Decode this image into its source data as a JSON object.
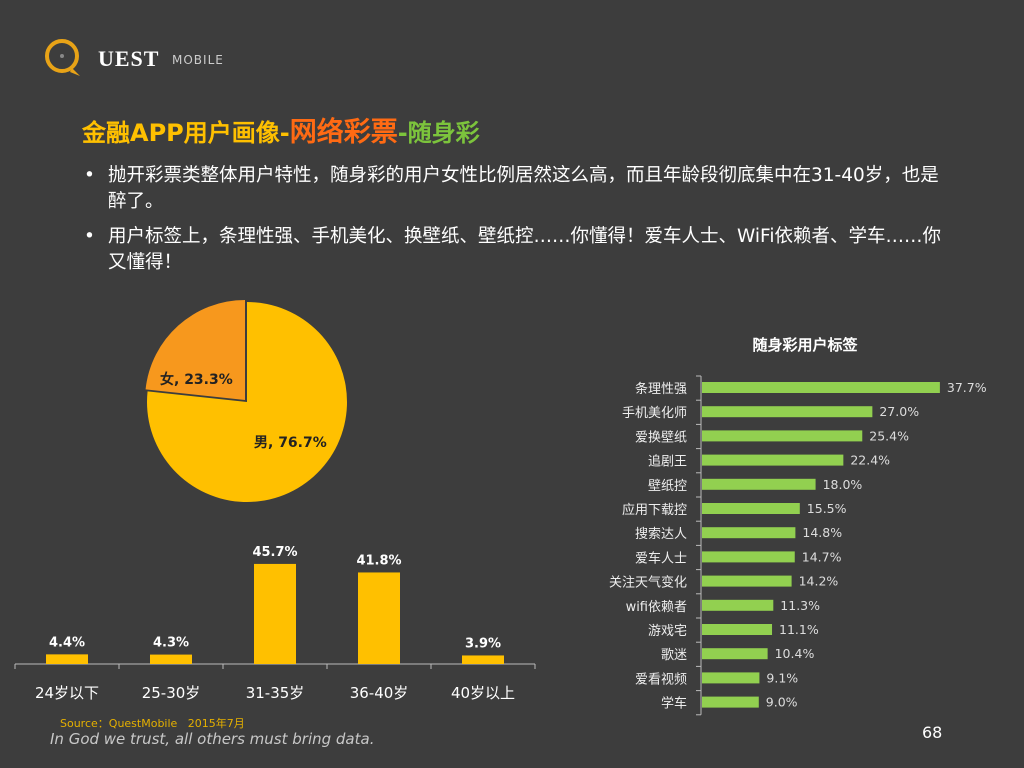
{
  "logo": {
    "brand": "UEST",
    "sub": "MOBILE"
  },
  "title": {
    "part1": "金融APP用户画像-",
    "part2": "网络彩票",
    "part3": "-随身彩"
  },
  "bullets": [
    "抛开彩票类整体用户特性，随身彩的用户女性比例居然这么高，而且年龄段彻底集中在31-40岁，也是醉了。",
    "用户标签上，条理性强、手机美化、换壁纸、壁纸控……你懂得！爱车人士、WiFi依赖者、学车……你又懂得！"
  ],
  "footer": {
    "source": "Source：QuestMobile   2015年7月",
    "tagline": "In God we trust, all others must bring data.",
    "page": "68"
  },
  "chart_data": [
    {
      "type": "pie",
      "categories": [
        "男",
        "女"
      ],
      "values": [
        76.7,
        23.3
      ],
      "labels": [
        "男, 76.7%",
        "女, 23.3%"
      ],
      "colors": [
        "#ffc000",
        "#f7981d"
      ]
    },
    {
      "type": "bar",
      "categories": [
        "24岁以下",
        "25-30岁",
        "31-35岁",
        "36-40岁",
        "40岁以上"
      ],
      "values": [
        4.4,
        4.3,
        45.7,
        41.8,
        3.9
      ],
      "data_labels": [
        "4.4%",
        "4.3%",
        "45.7%",
        "41.8%",
        "3.9%"
      ],
      "color": "#ffc000"
    },
    {
      "type": "bar",
      "orientation": "horizontal",
      "title": "随身彩用户标签",
      "categories": [
        "条理性强",
        "手机美化师",
        "爱换壁纸",
        "追剧王",
        "壁纸控",
        "应用下载控",
        "搜索达人",
        "爱车人士",
        "关注天气变化",
        "wifi依赖者",
        "游戏宅",
        "歌迷",
        "爱看视频",
        "学车"
      ],
      "values": [
        37.7,
        27.0,
        25.4,
        22.4,
        18.0,
        15.5,
        14.8,
        14.7,
        14.2,
        11.3,
        11.1,
        10.4,
        9.1,
        9.0
      ],
      "data_labels": [
        "37.7%",
        "27.0%",
        "25.4%",
        "22.4%",
        "18.0%",
        "15.5%",
        "14.8%",
        "14.7%",
        "14.2%",
        "11.3%",
        "11.1%",
        "10.4%",
        "9.1%",
        "9.0%"
      ],
      "color": "#92d050"
    }
  ]
}
